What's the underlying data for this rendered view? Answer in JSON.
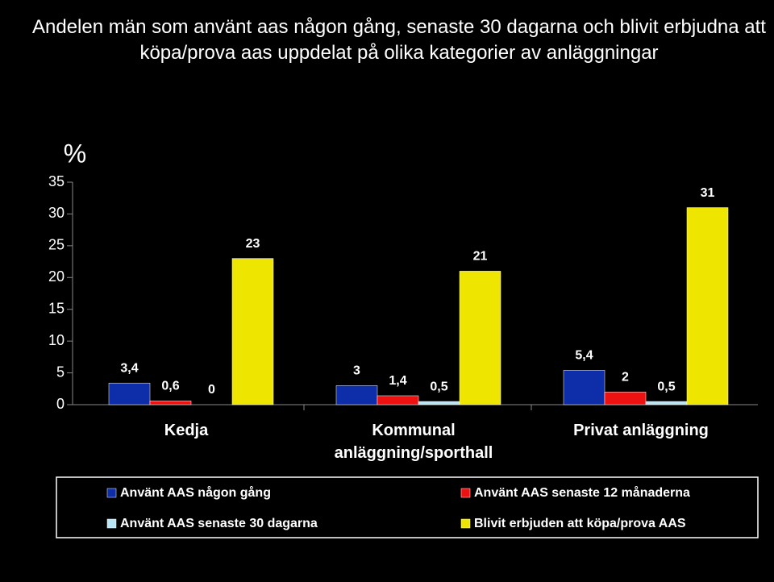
{
  "chart_data": {
    "type": "bar",
    "title": "Andelen män som använt aas någon gång, senaste 30 dagarna och blivit erbjudna att köpa/prova aas uppdelat på olika kategorier av anläggningar",
    "y_label": "%",
    "categories": [
      "Kedja",
      "Kommunal anläggning/sporthall",
      "Privat anläggning"
    ],
    "series": [
      {
        "name": "Använt AAS någon gång",
        "color": "#0d2ea8",
        "values": [
          3.4,
          3,
          5.4
        ],
        "value_labels": [
          "3,4",
          "3",
          "5,4"
        ]
      },
      {
        "name": "Använt AAS senaste 12 månaderna",
        "color": "#ee1111",
        "values": [
          0.6,
          1.4,
          2
        ],
        "value_labels": [
          "0,6",
          "1,4",
          "2"
        ]
      },
      {
        "name": "Använt AAS senaste 30 dagarna",
        "color": "#b8e6f5",
        "values": [
          0,
          0.5,
          0.5
        ],
        "value_labels": [
          "0",
          "0,5",
          "0,5"
        ]
      },
      {
        "name": "Blivit erbjuden att köpa/prova AAS",
        "color": "#eee600",
        "values": [
          23,
          21,
          31
        ],
        "value_labels": [
          "23",
          "21",
          "31"
        ]
      }
    ],
    "ylim": [
      0,
      35
    ],
    "yticks": [
      0,
      5,
      10,
      15,
      20,
      25,
      30,
      35
    ]
  }
}
